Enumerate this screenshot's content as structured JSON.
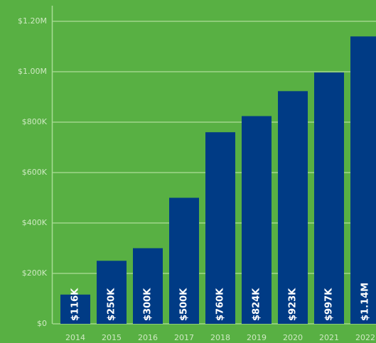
{
  "chart_data": {
    "type": "bar",
    "categories": [
      "2014",
      "2015",
      "2016",
      "2017",
      "2018",
      "2019",
      "2020",
      "2021",
      "2022"
    ],
    "values": [
      116000,
      250000,
      300000,
      500000,
      760000,
      824000,
      923000,
      997000,
      1140000
    ],
    "value_labels": [
      "$116K",
      "$250K",
      "$300K",
      "$500K",
      "$760K",
      "$824K",
      "$923K",
      "$997K",
      "$1.14M"
    ],
    "color": "#003b85",
    "ylim": [
      0,
      1200000
    ],
    "yticks": [
      {
        "value": 0,
        "label": "$0"
      },
      {
        "value": 200000,
        "label": "$200K"
      },
      {
        "value": 400000,
        "label": "$400K"
      },
      {
        "value": 600000,
        "label": "$600K"
      },
      {
        "value": 800000,
        "label": "$800K"
      },
      {
        "value": 1000000,
        "label": "$1.00M"
      },
      {
        "value": 1200000,
        "label": "$1.20M"
      }
    ],
    "grid": true
  }
}
